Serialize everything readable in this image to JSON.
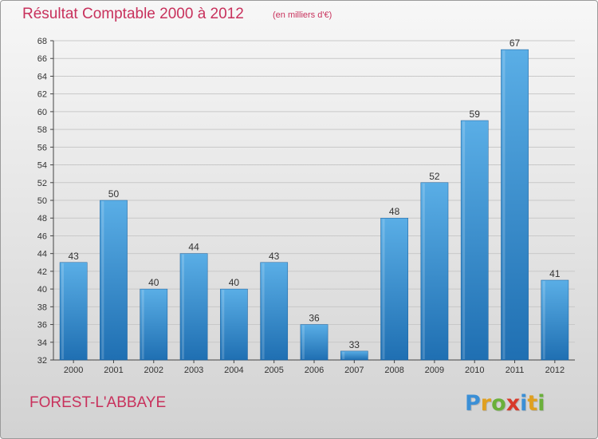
{
  "header": {
    "title": "Résultat Comptable 2000 à 2012",
    "subtitle": "(en milliers d'€)"
  },
  "footer": {
    "commune": "FOREST-L'ABBAYE",
    "logo_letters": [
      "P",
      "r",
      "o",
      "x",
      "i",
      "t",
      "i"
    ],
    "logo_colors": [
      "#3a8fd6",
      "#e0a020",
      "#6ab03a",
      "#d83a2a",
      "#3a8fd6",
      "#e0a020",
      "#6ab03a"
    ]
  },
  "colors": {
    "bar_light": "#5aaee6",
    "bar_dark": "#1f6fb2",
    "grid": "#c8c8c8",
    "accent": "#c8315c"
  },
  "chart_data": {
    "type": "bar",
    "title": "Résultat Comptable 2000 à 2012",
    "xlabel": "",
    "ylabel": "en milliers d'€",
    "categories": [
      "2000",
      "2001",
      "2002",
      "2003",
      "2004",
      "2005",
      "2006",
      "2007",
      "2008",
      "2009",
      "2010",
      "2011",
      "2012"
    ],
    "values": [
      43,
      50,
      40,
      44,
      40,
      43,
      36,
      33,
      48,
      52,
      59,
      67,
      41
    ],
    "ylim": [
      32,
      68
    ],
    "yticks": [
      32,
      34,
      36,
      38,
      40,
      42,
      44,
      46,
      48,
      50,
      52,
      54,
      56,
      58,
      60,
      62,
      64,
      66,
      68
    ],
    "grid": true
  }
}
